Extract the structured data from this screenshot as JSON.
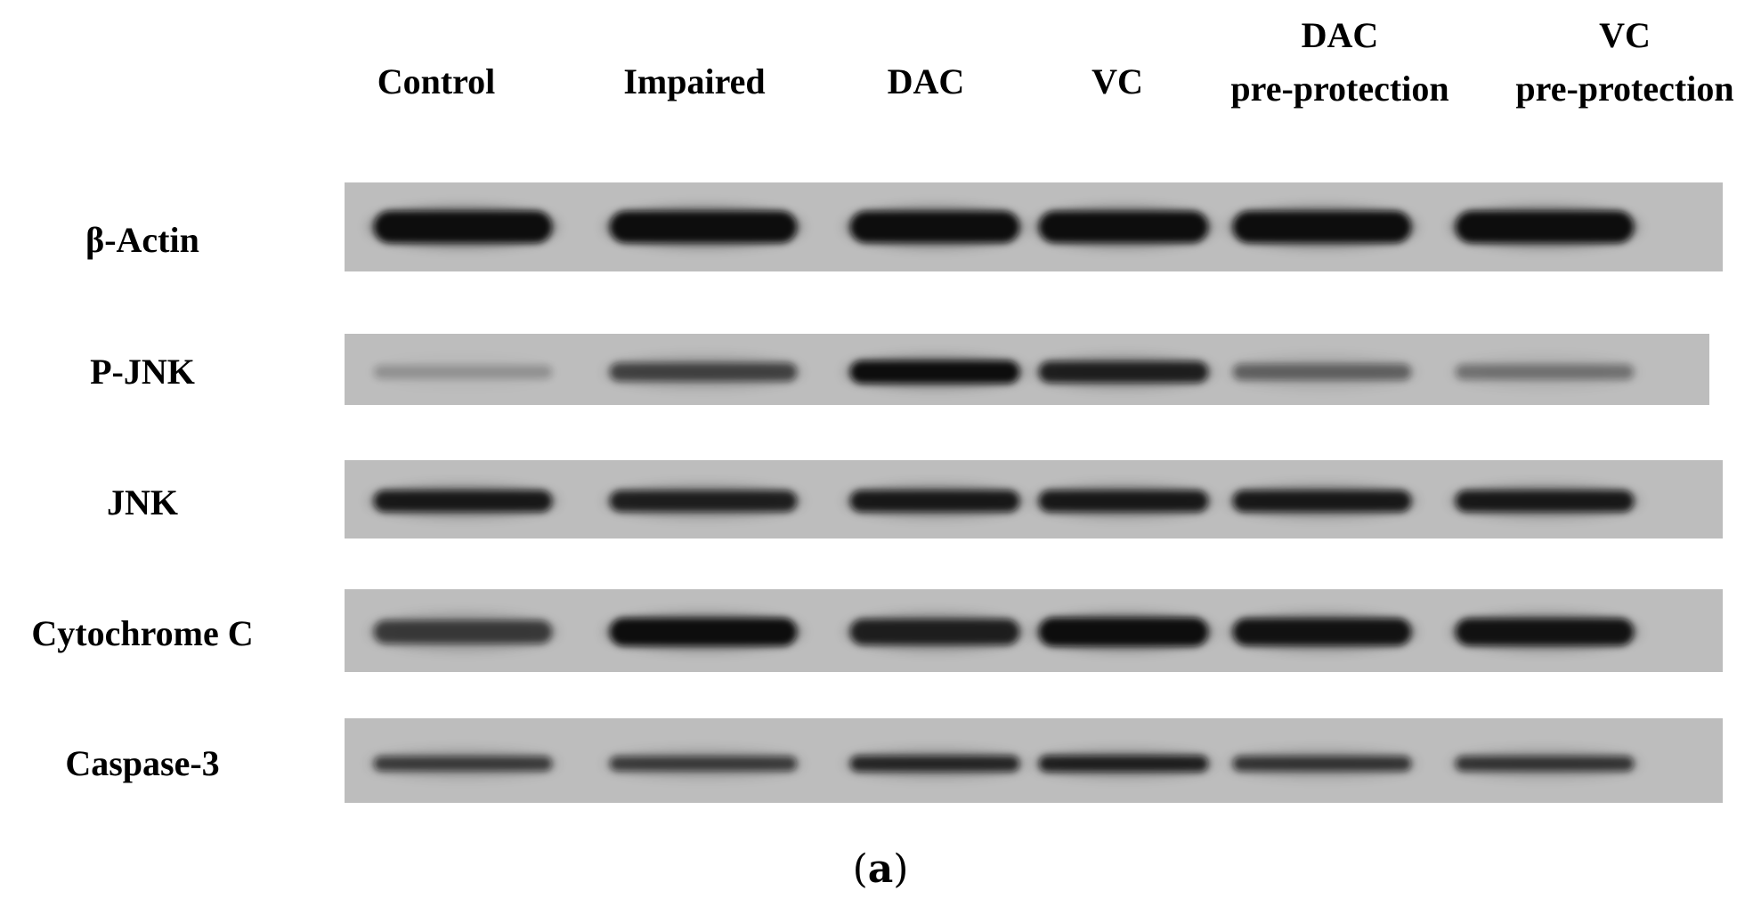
{
  "figure": {
    "caption_open": "(",
    "caption_letter": "a",
    "caption_close": ")"
  },
  "columns": [
    {
      "line1": "Control",
      "line2": ""
    },
    {
      "line1": "Impaired",
      "line2": ""
    },
    {
      "line1": "DAC",
      "line2": ""
    },
    {
      "line1": "VC",
      "line2": ""
    },
    {
      "line1": "DAC",
      "line2": "pre-protection"
    },
    {
      "line1": "VC",
      "line2": "pre-protection"
    }
  ],
  "rows": [
    {
      "label": "β-Actin",
      "band_intensity": [
        1.0,
        0.98,
        0.97,
        0.97,
        0.98,
        1.0
      ]
    },
    {
      "label": "P-JNK",
      "band_intensity": [
        0.08,
        0.55,
        0.95,
        0.8,
        0.35,
        0.25
      ]
    },
    {
      "label": "JNK",
      "band_intensity": [
        0.85,
        0.8,
        0.85,
        0.85,
        0.85,
        0.85
      ]
    },
    {
      "label": "Cytochrome C",
      "band_intensity": [
        0.6,
        0.95,
        0.8,
        1.0,
        0.9,
        0.9
      ]
    },
    {
      "label": "Caspase-3",
      "band_intensity": [
        0.6,
        0.6,
        0.75,
        0.8,
        0.65,
        0.65
      ]
    }
  ],
  "colors": {
    "blot_background": "#bdbdbd",
    "band": "#0a0a0a"
  }
}
